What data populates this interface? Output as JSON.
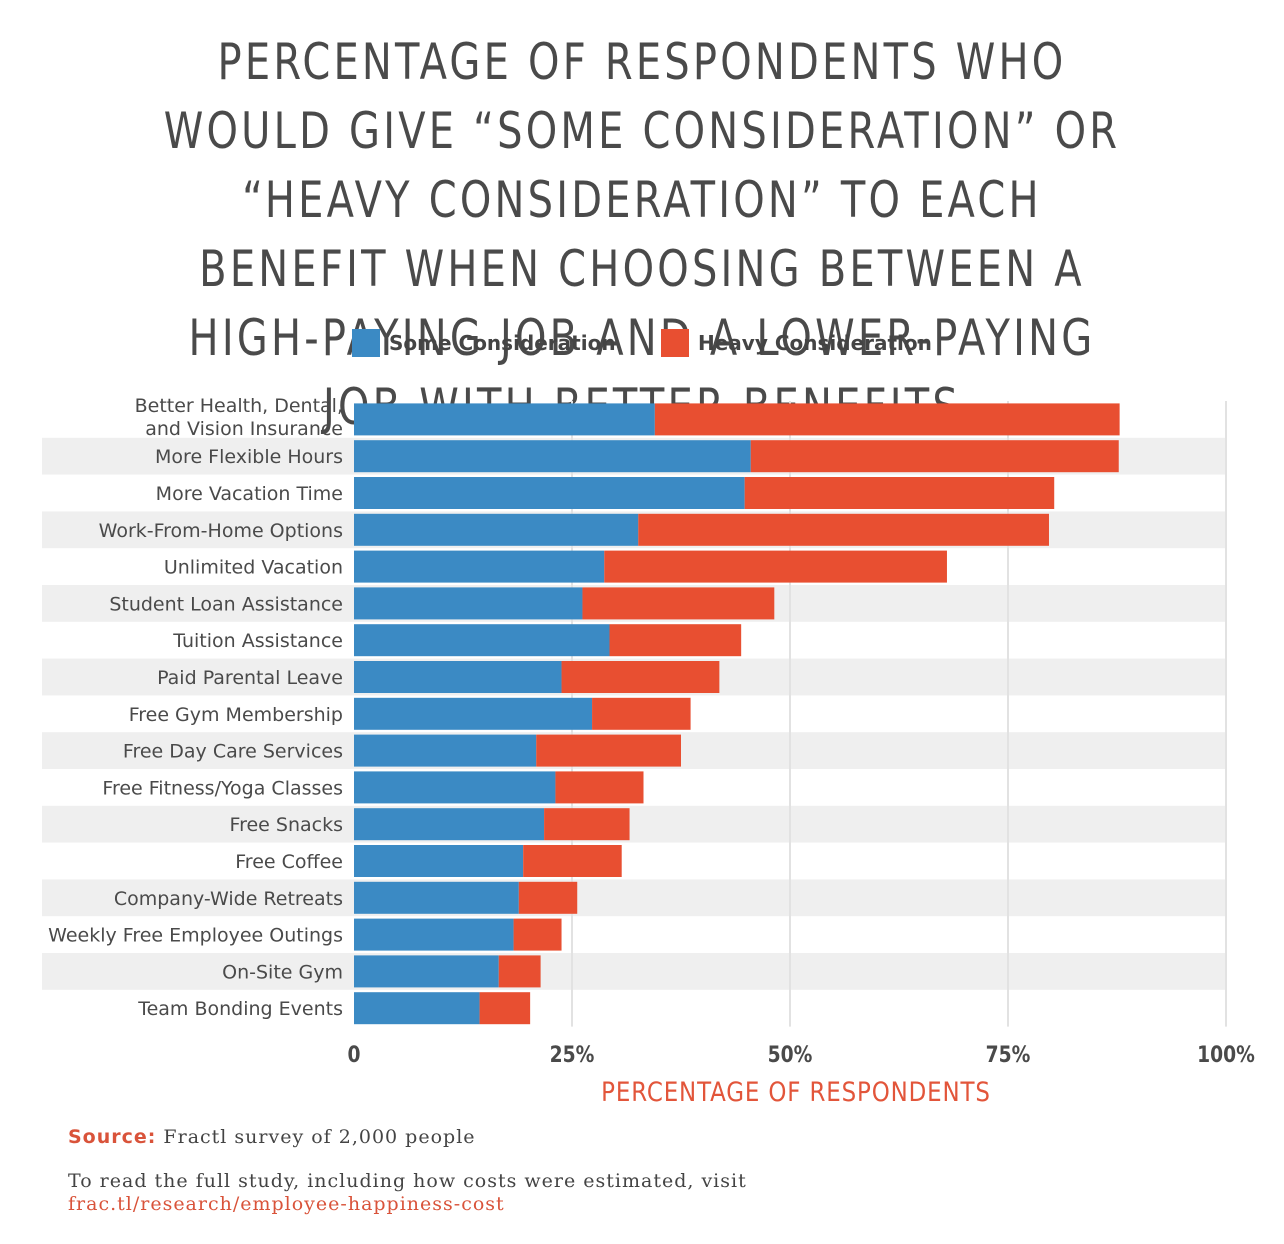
{
  "chart_data": {
    "type": "bar",
    "orientation": "horizontal",
    "stacked": true,
    "title": "Percentage of respondents who would give “some consideration” or “heavy consideration” to each benefit when choosing between a high-paying job and a lower-paying job with better benefits",
    "xlabel": "Percentage of Respondents",
    "ylabel": "",
    "xlim": [
      0,
      100
    ],
    "xticks": [
      "0",
      "25%",
      "50%",
      "75%",
      "100%"
    ],
    "legend_position": "top",
    "categories": [
      "Better Health, Dental,\nand Vision Insurance",
      "More Flexible Hours",
      "More Vacation Time",
      "Work-From-Home Options",
      "Unlimited Vacation",
      "Student Loan Assistance",
      "Tuition Assistance",
      "Paid Parental Leave",
      "Free Gym Membership",
      "Free Day Care Services",
      "Free Fitness/Yoga Classes",
      "Free Snacks",
      "Free Coffee",
      "Company-Wide Retreats",
      "Weekly Free Employee Outings",
      "On-Site Gym",
      "Team Bonding Events"
    ],
    "series": [
      {
        "name": "Some Consideration",
        "color": "#3b8ac4",
        "values": [
          34.5,
          45.5,
          44.8,
          32.6,
          28.7,
          26.2,
          29.3,
          23.8,
          27.3,
          20.9,
          23.1,
          21.8,
          19.4,
          18.9,
          18.3,
          16.6,
          14.4
        ]
      },
      {
        "name": "Heavy Consideration",
        "color": "#e84f31",
        "values": [
          53.3,
          42.2,
          35.5,
          47.1,
          39.3,
          22.0,
          15.1,
          18.1,
          11.3,
          16.6,
          10.1,
          9.8,
          11.3,
          6.7,
          5.5,
          4.8,
          5.8
        ]
      }
    ]
  },
  "footer": {
    "source_label": "Source:",
    "source_text": " Fractl survey of 2,000 people",
    "note_text": "To read the full study, including how costs were estimated, visit",
    "link_text": "frac.tl/research/employee-happiness-cost"
  }
}
